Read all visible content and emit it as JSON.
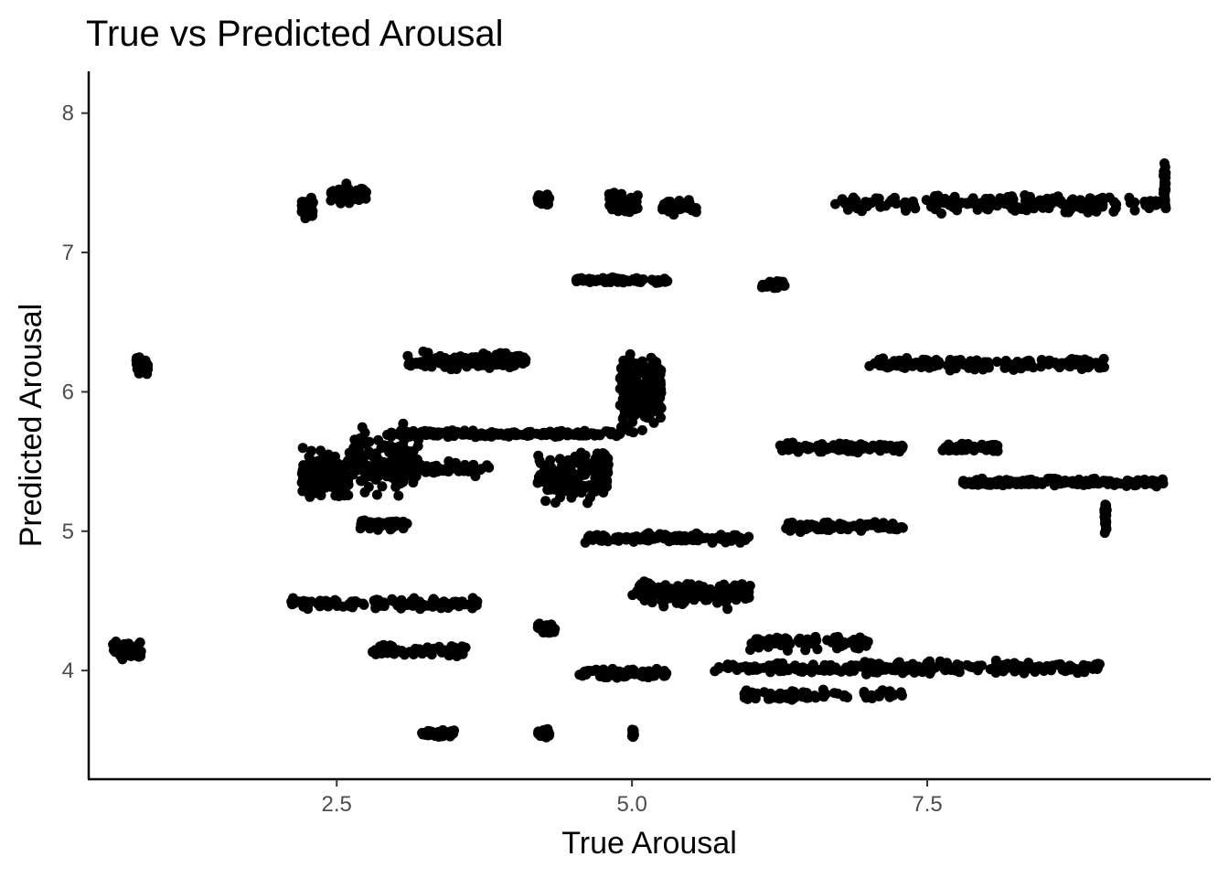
{
  "chart_data": {
    "type": "scatter",
    "title": "True vs Predicted Arousal",
    "xlabel": "True Arousal",
    "ylabel": "Predicted Arousal",
    "xlim": [
      0.4,
      9.9
    ],
    "ylim": [
      3.22,
      8.3
    ],
    "x_ticks": [
      2.5,
      5.0,
      7.5
    ],
    "x_tick_labels": [
      "2.5",
      "5.0",
      "7.5"
    ],
    "y_ticks": [
      4,
      5,
      6,
      7,
      8
    ],
    "y_tick_labels": [
      "4",
      "5",
      "6",
      "7",
      "8"
    ],
    "grid": false,
    "point_color": "#000000",
    "clusters": [
      {
        "x0": 0.6,
        "x1": 0.85,
        "y": 4.14,
        "spread": 0.08,
        "n": 60
      },
      {
        "x0": 0.8,
        "x1": 0.9,
        "y": 6.2,
        "spread": 0.1,
        "n": 40
      },
      {
        "x0": 2.2,
        "x1": 2.3,
        "y": 7.32,
        "spread": 0.1,
        "n": 30
      },
      {
        "x0": 2.45,
        "x1": 2.75,
        "y": 7.42,
        "spread": 0.1,
        "n": 60
      },
      {
        "x0": 2.1,
        "x1": 3.7,
        "y": 4.48,
        "spread": 0.05,
        "n": 110
      },
      {
        "x0": 2.8,
        "x1": 3.6,
        "y": 4.14,
        "spread": 0.05,
        "n": 70
      },
      {
        "x0": 3.2,
        "x1": 3.5,
        "y": 3.55,
        "spread": 0.04,
        "n": 40
      },
      {
        "x0": 2.2,
        "x1": 2.6,
        "y": 5.4,
        "spread": 0.25,
        "n": 120
      },
      {
        "x0": 2.6,
        "x1": 3.2,
        "y": 5.5,
        "spread": 0.3,
        "n": 140
      },
      {
        "x0": 2.9,
        "x1": 4.9,
        "y": 5.7,
        "spread": 0.03,
        "n": 160
      },
      {
        "x0": 3.1,
        "x1": 4.1,
        "y": 6.22,
        "spread": 0.08,
        "n": 120
      },
      {
        "x0": 2.7,
        "x1": 3.1,
        "y": 5.05,
        "spread": 0.05,
        "n": 50
      },
      {
        "x0": 3.2,
        "x1": 3.8,
        "y": 5.45,
        "spread": 0.06,
        "n": 40
      },
      {
        "x0": 4.2,
        "x1": 4.3,
        "y": 7.38,
        "spread": 0.06,
        "n": 30
      },
      {
        "x0": 4.8,
        "x1": 5.05,
        "y": 7.35,
        "spread": 0.1,
        "n": 50
      },
      {
        "x0": 5.25,
        "x1": 5.55,
        "y": 7.32,
        "spread": 0.08,
        "n": 40
      },
      {
        "x0": 4.5,
        "x1": 5.3,
        "y": 6.8,
        "spread": 0.03,
        "n": 70
      },
      {
        "x0": 4.2,
        "x1": 4.8,
        "y": 5.4,
        "spread": 0.25,
        "n": 150
      },
      {
        "x0": 4.9,
        "x1": 5.25,
        "y": 6.0,
        "spread": 0.35,
        "n": 180
      },
      {
        "x0": 4.6,
        "x1": 6.0,
        "y": 4.95,
        "spread": 0.04,
        "n": 130
      },
      {
        "x0": 5.0,
        "x1": 6.0,
        "y": 4.55,
        "spread": 0.12,
        "n": 120
      },
      {
        "x0": 4.5,
        "x1": 5.3,
        "y": 3.98,
        "spread": 0.05,
        "n": 80
      },
      {
        "x0": 4.2,
        "x1": 4.3,
        "y": 3.55,
        "spread": 0.04,
        "n": 30
      },
      {
        "x0": 5.0,
        "x1": 5.02,
        "y": 3.55,
        "spread": 0.05,
        "n": 20
      },
      {
        "x0": 4.2,
        "x1": 4.35,
        "y": 4.3,
        "spread": 0.05,
        "n": 30
      },
      {
        "x0": 6.1,
        "x1": 6.3,
        "y": 6.77,
        "spread": 0.04,
        "n": 30
      },
      {
        "x0": 6.7,
        "x1": 9.5,
        "y": 7.35,
        "spread": 0.08,
        "n": 190
      },
      {
        "x0": 7.0,
        "x1": 9.0,
        "y": 6.2,
        "spread": 0.06,
        "n": 150
      },
      {
        "x0": 6.25,
        "x1": 7.3,
        "y": 5.6,
        "spread": 0.04,
        "n": 90
      },
      {
        "x0": 7.6,
        "x1": 8.1,
        "y": 5.6,
        "spread": 0.04,
        "n": 40
      },
      {
        "x0": 7.8,
        "x1": 9.5,
        "y": 5.35,
        "spread": 0.04,
        "n": 150
      },
      {
        "x0": 6.3,
        "x1": 7.3,
        "y": 5.03,
        "spread": 0.05,
        "n": 80
      },
      {
        "x0": 5.7,
        "x1": 9.0,
        "y": 4.02,
        "spread": 0.06,
        "n": 240
      },
      {
        "x0": 6.0,
        "x1": 7.0,
        "y": 4.2,
        "spread": 0.08,
        "n": 80
      },
      {
        "x0": 5.9,
        "x1": 7.3,
        "y": 3.82,
        "spread": 0.05,
        "n": 70
      },
      {
        "x0": 9.0,
        "x1": 9.02,
        "y": 5.1,
        "spread": 0.15,
        "n": 30
      },
      {
        "x0": 9.5,
        "x1": 9.52,
        "y": 7.5,
        "spread": 0.25,
        "n": 40
      }
    ]
  }
}
